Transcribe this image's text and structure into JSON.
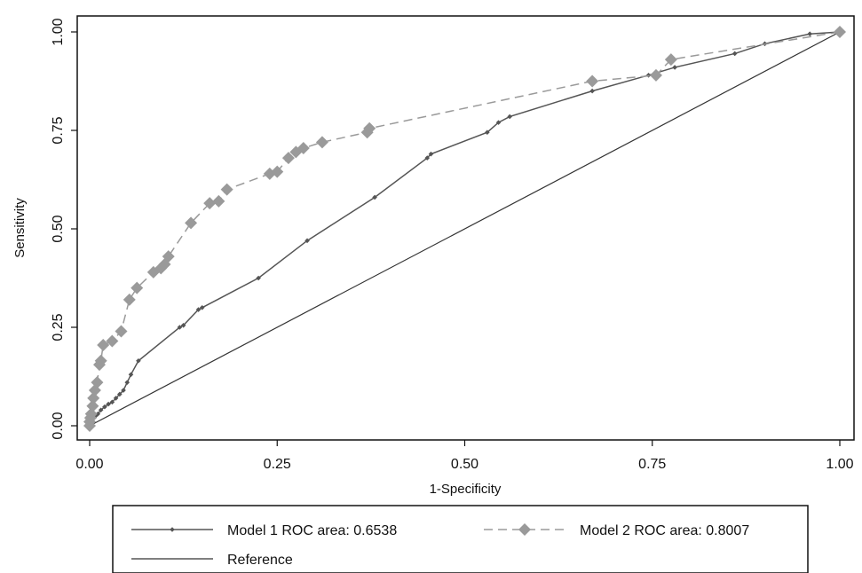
{
  "chart_data": {
    "type": "line",
    "title": "",
    "xlabel": "1-Specificity",
    "ylabel": "Sensitivity",
    "xlim": [
      0,
      1
    ],
    "ylim": [
      0,
      1
    ],
    "xticks": [
      "0.00",
      "0.25",
      "0.50",
      "0.75",
      "1.00"
    ],
    "yticks": [
      "0.00",
      "0.25",
      "0.50",
      "0.75",
      "1.00"
    ],
    "grid": false,
    "legend_position": "bottom",
    "series": [
      {
        "name": "Model 1 ROC area: 0.6538",
        "style": "solid",
        "marker": "small-diamond",
        "color": "#555555",
        "points": [
          [
            0.0,
            0.0
          ],
          [
            0.003,
            0.01
          ],
          [
            0.006,
            0.02
          ],
          [
            0.008,
            0.025
          ],
          [
            0.011,
            0.03
          ],
          [
            0.015,
            0.04
          ],
          [
            0.02,
            0.048
          ],
          [
            0.025,
            0.055
          ],
          [
            0.03,
            0.06
          ],
          [
            0.035,
            0.07
          ],
          [
            0.04,
            0.08
          ],
          [
            0.045,
            0.09
          ],
          [
            0.05,
            0.11
          ],
          [
            0.055,
            0.13
          ],
          [
            0.065,
            0.165
          ],
          [
            0.12,
            0.25
          ],
          [
            0.125,
            0.255
          ],
          [
            0.145,
            0.295
          ],
          [
            0.15,
            0.3
          ],
          [
            0.225,
            0.375
          ],
          [
            0.29,
            0.47
          ],
          [
            0.38,
            0.58
          ],
          [
            0.45,
            0.68
          ],
          [
            0.455,
            0.69
          ],
          [
            0.53,
            0.745
          ],
          [
            0.545,
            0.77
          ],
          [
            0.56,
            0.785
          ],
          [
            0.67,
            0.85
          ],
          [
            0.745,
            0.89
          ],
          [
            0.78,
            0.91
          ],
          [
            0.86,
            0.945
          ],
          [
            0.9,
            0.97
          ],
          [
            0.96,
            0.995
          ],
          [
            1.0,
            1.0
          ]
        ]
      },
      {
        "name": "Model 2 ROC area: 0.8007",
        "style": "dashed",
        "marker": "large-diamond",
        "color": "#9a9a9a",
        "points": [
          [
            0.0,
            0.0
          ],
          [
            0.0,
            0.01
          ],
          [
            0.001,
            0.02
          ],
          [
            0.002,
            0.03
          ],
          [
            0.004,
            0.05
          ],
          [
            0.005,
            0.07
          ],
          [
            0.007,
            0.09
          ],
          [
            0.01,
            0.11
          ],
          [
            0.013,
            0.155
          ],
          [
            0.015,
            0.165
          ],
          [
            0.018,
            0.205
          ],
          [
            0.03,
            0.215
          ],
          [
            0.042,
            0.24
          ],
          [
            0.053,
            0.32
          ],
          [
            0.063,
            0.35
          ],
          [
            0.085,
            0.39
          ],
          [
            0.095,
            0.4
          ],
          [
            0.1,
            0.41
          ],
          [
            0.105,
            0.43
          ],
          [
            0.135,
            0.515
          ],
          [
            0.16,
            0.565
          ],
          [
            0.172,
            0.57
          ],
          [
            0.183,
            0.6
          ],
          [
            0.24,
            0.64
          ],
          [
            0.25,
            0.645
          ],
          [
            0.265,
            0.68
          ],
          [
            0.275,
            0.695
          ],
          [
            0.285,
            0.705
          ],
          [
            0.31,
            0.72
          ],
          [
            0.37,
            0.745
          ],
          [
            0.373,
            0.755
          ],
          [
            0.67,
            0.875
          ],
          [
            0.755,
            0.89
          ],
          [
            0.775,
            0.93
          ],
          [
            1.0,
            1.0
          ]
        ]
      },
      {
        "name": "Reference",
        "style": "solid",
        "marker": "none",
        "color": "#333333",
        "points": [
          [
            0,
            0
          ],
          [
            1,
            1
          ]
        ]
      }
    ]
  }
}
